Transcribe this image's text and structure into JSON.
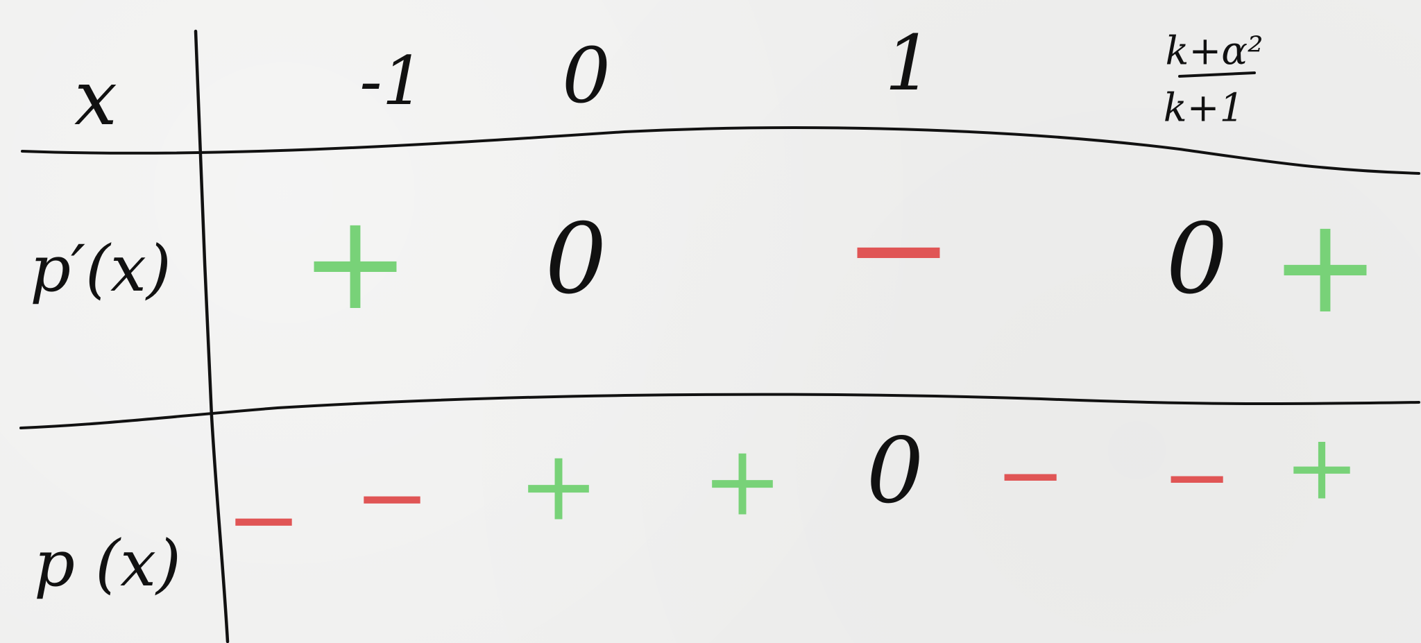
{
  "colors": {
    "ink": "#111111",
    "plus": "#78d278",
    "minus": "#e05555",
    "paper": "#efefee"
  },
  "header": {
    "row_label": "x",
    "points": [
      "-1",
      "0",
      "1"
    ],
    "last_point": {
      "numerator": "k+α²",
      "denominator": "k+1"
    }
  },
  "rows": {
    "derivative": {
      "label": "p′(x)",
      "entries": [
        "+",
        "0",
        "−",
        "0",
        "+"
      ]
    },
    "function": {
      "label": "p (x)",
      "entries": [
        "−",
        "−",
        "+",
        "+",
        "0",
        "−",
        "−",
        "+"
      ]
    }
  }
}
